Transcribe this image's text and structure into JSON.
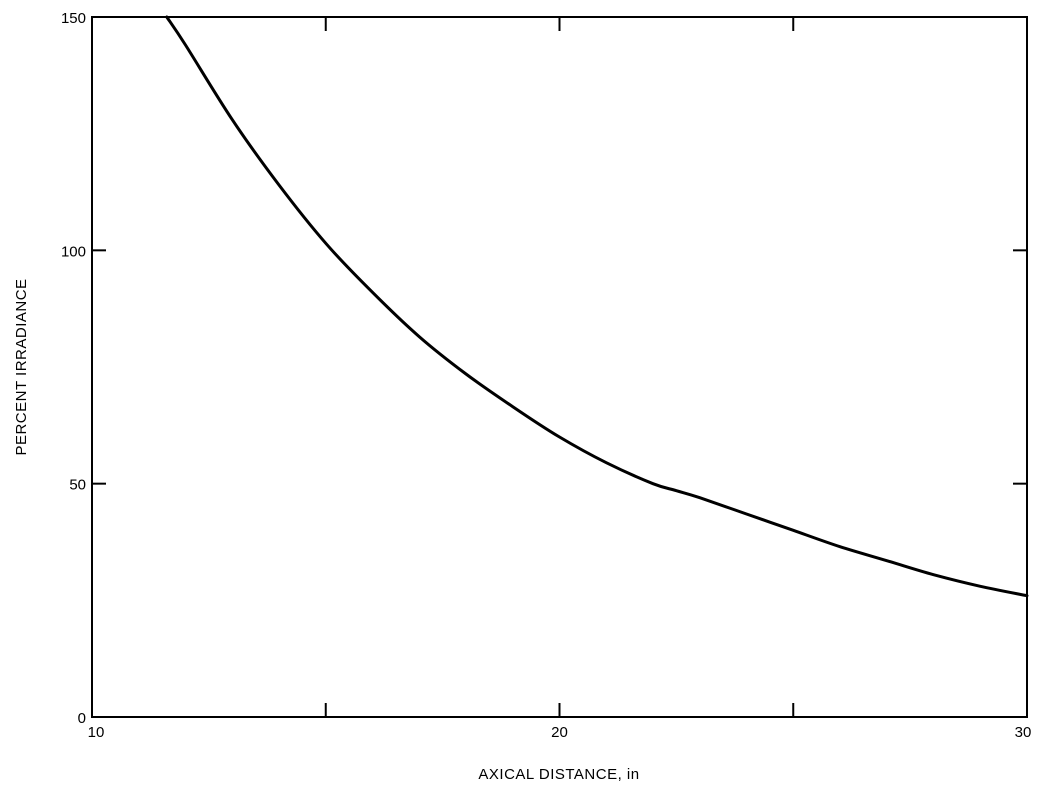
{
  "chart_data": {
    "type": "line",
    "title": "",
    "xlabel": "AXICAL DISTANCE, in",
    "ylabel": "PERCENT IRRADIANCE",
    "xlim": [
      10,
      30
    ],
    "ylim": [
      0,
      150
    ],
    "x_ticks": [
      10,
      20,
      30
    ],
    "x_tick_labels": [
      "10",
      "20",
      "30"
    ],
    "x_minor_ticks": [
      15,
      25
    ],
    "y_ticks": [
      0,
      50,
      100,
      150
    ],
    "y_tick_labels": [
      "0",
      "50",
      "100",
      "150"
    ],
    "grid": false,
    "legend": "none",
    "series": [
      {
        "x": [
          11.6,
          12,
          13,
          14,
          15,
          16,
          17,
          18,
          19,
          20,
          21,
          22,
          22.5,
          23,
          24,
          25,
          26,
          27,
          28,
          29,
          30
        ],
        "y": [
          150,
          144,
          128,
          114,
          101.5,
          91,
          81.5,
          73.5,
          66.5,
          60,
          54.5,
          50,
          48.5,
          47,
          43.5,
          40,
          36.5,
          33.5,
          30.5,
          28,
          26
        ]
      }
    ]
  }
}
